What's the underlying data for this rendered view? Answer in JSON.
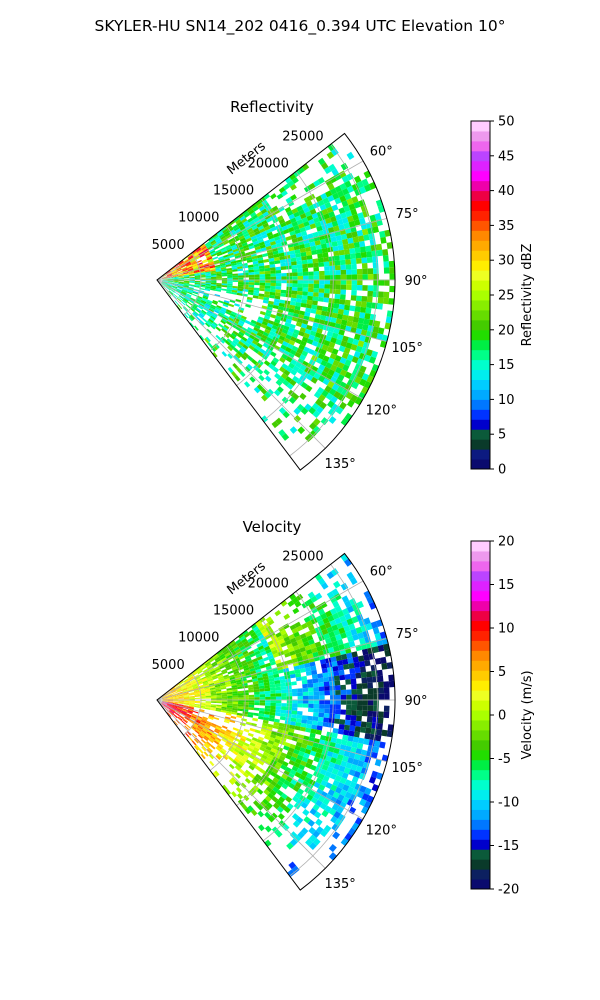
{
  "figure_title": "SKYLER-HU  SN14_202  0416_0.394 UTC Elevation 10°",
  "chart_data": [
    {
      "type": "heatmap",
      "subtype": "polar-sector (PPI radar scan)",
      "title": "Reflectivity",
      "range_label": "Meters",
      "range_ticks": [
        5000,
        10000,
        15000,
        20000,
        25000
      ],
      "range_max": 27000,
      "azimuth_range_deg": [
        52,
        143
      ],
      "azimuth_ticks": [
        "60°",
        "75°",
        "90°",
        "105°",
        "120°",
        "135°"
      ],
      "grid": true,
      "colorbar": {
        "label": "Reflectivity dBZ",
        "range": [
          0,
          50
        ],
        "ticks": [
          0,
          5,
          10,
          15,
          20,
          25,
          30,
          35,
          40,
          45,
          50
        ],
        "colors": [
          "#0a0a6e",
          "#0c1a80",
          "#0a3a2a",
          "#0b5a3a",
          "#0000cc",
          "#0033ff",
          "#0077ff",
          "#00aaff",
          "#00ccff",
          "#00eeee",
          "#00ffcc",
          "#00ff88",
          "#00ee44",
          "#22dd00",
          "#44cc00",
          "#66dd00",
          "#88ee00",
          "#aaff00",
          "#ccff00",
          "#eeff22",
          "#ffee00",
          "#ffcc00",
          "#ffaa00",
          "#ff8800",
          "#ff5500",
          "#ff2200",
          "#ff0000",
          "#ee0044",
          "#ee00aa",
          "#ff00ff",
          "#dd22ff",
          "#bb44ff",
          "#ee66ee",
          "#ee99ee",
          "#ffccff"
        ]
      }
    },
    {
      "type": "heatmap",
      "subtype": "polar-sector (PPI radar scan)",
      "title": "Velocity",
      "range_label": "Meters",
      "range_ticks": [
        5000,
        10000,
        15000,
        20000,
        25000
      ],
      "range_max": 27000,
      "azimuth_range_deg": [
        52,
        143
      ],
      "azimuth_ticks": [
        "60°",
        "75°",
        "90°",
        "105°",
        "120°",
        "135°"
      ],
      "grid": true,
      "colorbar": {
        "label": "Velocity (m/s)",
        "range": [
          -20,
          20
        ],
        "ticks": [
          -20,
          -15,
          -10,
          -5,
          0,
          5,
          10,
          15,
          20
        ],
        "colors": [
          "#0a0a6e",
          "#0c2060",
          "#0a3a2a",
          "#0b5a3a",
          "#0000cc",
          "#0033ff",
          "#0077ff",
          "#00aaff",
          "#00ccff",
          "#00eeee",
          "#00ffcc",
          "#00ff88",
          "#00ee44",
          "#22dd00",
          "#44cc00",
          "#66dd00",
          "#88ee00",
          "#aaff00",
          "#ccff00",
          "#eeff22",
          "#ffee00",
          "#ffcc00",
          "#ffaa00",
          "#ff8800",
          "#ff5500",
          "#ff2200",
          "#ff0000",
          "#ee0044",
          "#ee00aa",
          "#ff00ff",
          "#dd22ff",
          "#bb44ff",
          "#ee66ee",
          "#ee99ee",
          "#ffccff"
        ]
      }
    }
  ]
}
